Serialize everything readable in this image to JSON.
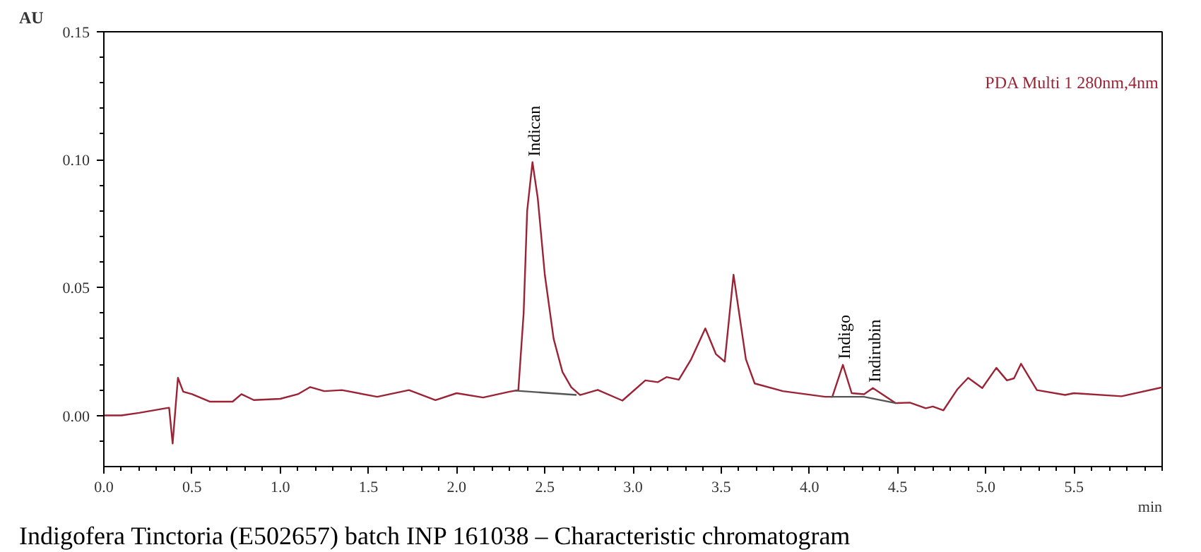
{
  "chart_data": {
    "type": "line",
    "xlabel": "min",
    "ylabel": "AU",
    "xlim": [
      0,
      6
    ],
    "ylim": [
      -0.02,
      0.15
    ],
    "xticks": [
      {
        "value": 0,
        "label": "0.0"
      },
      {
        "value": 0.1,
        "label": null
      },
      {
        "value": 0.2,
        "label": null
      },
      {
        "value": 0.3,
        "label": null
      },
      {
        "value": 0.4,
        "label": null
      },
      {
        "value": 0.5,
        "label": "0.5"
      },
      {
        "value": 0.6,
        "label": null
      },
      {
        "value": 0.7,
        "label": null
      },
      {
        "value": 0.8,
        "label": null
      },
      {
        "value": 0.9,
        "label": null
      },
      {
        "value": 1.0,
        "label": "1.0"
      },
      {
        "value": 1.1,
        "label": null
      },
      {
        "value": 1.2,
        "label": null
      },
      {
        "value": 1.3,
        "label": null
      },
      {
        "value": 1.4,
        "label": null
      },
      {
        "value": 1.5,
        "label": "1.5"
      },
      {
        "value": 1.6,
        "label": null
      },
      {
        "value": 1.7,
        "label": null
      },
      {
        "value": 1.8,
        "label": null
      },
      {
        "value": 1.9,
        "label": null
      },
      {
        "value": 2.0,
        "label": "2.0"
      },
      {
        "value": 2.1,
        "label": null
      },
      {
        "value": 2.2,
        "label": null
      },
      {
        "value": 2.3,
        "label": null
      },
      {
        "value": 2.4,
        "label": null
      },
      {
        "value": 2.5,
        "label": "2.5"
      },
      {
        "value": 2.6,
        "label": null
      },
      {
        "value": 2.7,
        "label": null
      },
      {
        "value": 2.8,
        "label": null
      },
      {
        "value": 2.9,
        "label": null
      },
      {
        "value": 3.0,
        "label": "3.0"
      },
      {
        "value": 3.1,
        "label": null
      },
      {
        "value": 3.2,
        "label": null
      },
      {
        "value": 3.3,
        "label": null
      },
      {
        "value": 3.4,
        "label": null
      },
      {
        "value": 3.5,
        "label": "3.5"
      },
      {
        "value": 3.6,
        "label": null
      },
      {
        "value": 3.7,
        "label": null
      },
      {
        "value": 3.8,
        "label": null
      },
      {
        "value": 3.9,
        "label": null
      },
      {
        "value": 4.0,
        "label": "4.0"
      },
      {
        "value": 4.1,
        "label": null
      },
      {
        "value": 4.2,
        "label": null
      },
      {
        "value": 4.3,
        "label": null
      },
      {
        "value": 4.4,
        "label": null
      },
      {
        "value": 4.5,
        "label": "4.5"
      },
      {
        "value": 4.6,
        "label": null
      },
      {
        "value": 4.7,
        "label": null
      },
      {
        "value": 4.8,
        "label": null
      },
      {
        "value": 4.9,
        "label": null
      },
      {
        "value": 5.0,
        "label": "5.0"
      },
      {
        "value": 5.1,
        "label": null
      },
      {
        "value": 5.2,
        "label": null
      },
      {
        "value": 5.3,
        "label": null
      },
      {
        "value": 5.4,
        "label": null
      },
      {
        "value": 5.5,
        "label": "5.5"
      },
      {
        "value": 5.6,
        "label": null
      },
      {
        "value": 5.7,
        "label": null
      },
      {
        "value": 5.8,
        "label": null
      },
      {
        "value": 5.9,
        "label": null
      },
      {
        "value": 6.0,
        "label": null
      }
    ],
    "yticks": [
      {
        "value": -0.01,
        "label": null
      },
      {
        "value": 0,
        "label": "0.00"
      },
      {
        "value": 0.01,
        "label": null
      },
      {
        "value": 0.02,
        "label": null
      },
      {
        "value": 0.03,
        "label": null
      },
      {
        "value": 0.04,
        "label": null
      },
      {
        "value": 0.05,
        "label": "0.05"
      },
      {
        "value": 0.06,
        "label": null
      },
      {
        "value": 0.07,
        "label": null
      },
      {
        "value": 0.08,
        "label": null
      },
      {
        "value": 0.09,
        "label": null
      },
      {
        "value": 0.1,
        "label": "0.10"
      },
      {
        "value": 0.11,
        "label": null
      },
      {
        "value": 0.12,
        "label": null
      },
      {
        "value": 0.13,
        "label": null
      },
      {
        "value": 0.14,
        "label": null
      },
      {
        "value": 0.15,
        "label": "0.15"
      }
    ],
    "grid": false,
    "legend": "top right",
    "series": [
      {
        "name": "PDA Multi 1 280nm,4nm",
        "color": "#9b2335",
        "x": [
          0,
          0.1,
          0.2,
          0.35,
          0.37,
          0.39,
          0.42,
          0.45,
          0.5,
          0.6,
          0.73,
          0.78,
          0.85,
          1.0,
          1.1,
          1.17,
          1.25,
          1.35,
          1.55,
          1.73,
          1.88,
          2.0,
          2.15,
          2.3,
          2.35,
          2.38,
          2.4,
          2.43,
          2.46,
          2.5,
          2.55,
          2.6,
          2.65,
          2.7,
          2.8,
          2.94,
          3.07,
          3.14,
          3.19,
          3.26,
          3.33,
          3.41,
          3.47,
          3.52,
          3.57,
          3.64,
          3.69,
          3.85,
          4.09,
          4.13,
          4.19,
          4.24,
          4.31,
          4.36,
          4.49,
          4.57,
          4.66,
          4.7,
          4.76,
          4.84,
          4.9,
          4.98,
          5.06,
          5.12,
          5.16,
          5.2,
          5.29,
          5.45,
          5.5,
          5.77,
          6.0
        ],
        "values": [
          0,
          0,
          0.001,
          0.0028,
          0.003,
          -0.011,
          0.0147,
          0.0093,
          0.0083,
          0.0054,
          0.0054,
          0.0083,
          0.006,
          0.0065,
          0.0083,
          0.0111,
          0.0095,
          0.0099,
          0.0073,
          0.0099,
          0.006,
          0.0087,
          0.007,
          0.0093,
          0.0099,
          0.04,
          0.08,
          0.099,
          0.085,
          0.055,
          0.03,
          0.017,
          0.011,
          0.008,
          0.01,
          0.0058,
          0.0137,
          0.013,
          0.015,
          0.014,
          0.022,
          0.034,
          0.024,
          0.021,
          0.055,
          0.022,
          0.0125,
          0.0095,
          0.0073,
          0.0073,
          0.0198,
          0.0087,
          0.0083,
          0.0107,
          0.0048,
          0.005,
          0.0028,
          0.0035,
          0.002,
          0.0103,
          0.0147,
          0.0107,
          0.0186,
          0.0137,
          0.0145,
          0.0202,
          0.0099,
          0.008,
          0.0087,
          0.0075,
          0.011
        ]
      },
      {
        "color": "#555555",
        "x": [
          2.33,
          2.68
        ],
        "values": [
          0.0097,
          0.008
        ]
      },
      {
        "color": "#555555",
        "x": [
          4.12,
          4.31,
          4.49
        ],
        "values": [
          0.0073,
          0.0073,
          0.0048
        ]
      }
    ],
    "annotations": [
      {
        "text": "Indican",
        "x": 2.43,
        "y": 0.099
      },
      {
        "text": "Indigo",
        "x": 4.19,
        "y": 0.0198
      },
      {
        "text": "Indirubin",
        "x": 4.36,
        "y": 0.0107
      },
      "Indigofera Tinctoria (E502657) batch INP 161038 – Characteristic chromatogram"
    ]
  }
}
